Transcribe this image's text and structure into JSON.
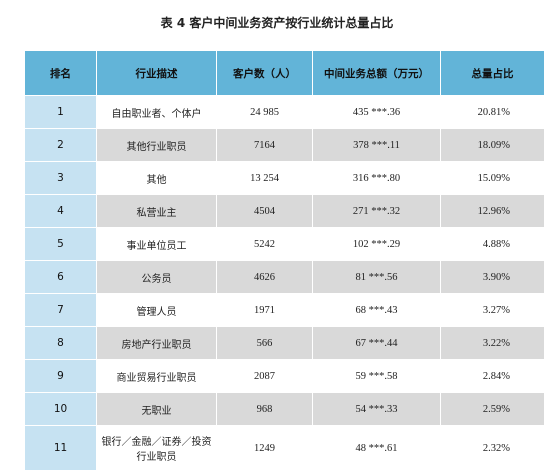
{
  "title": "表 4  客户中间业务资产按行业统计总量占比",
  "columns": [
    "排名",
    "行业描述",
    "客户数（人）",
    "中间业务总额（万元）",
    "总量占比"
  ],
  "rows": [
    {
      "rank": "1",
      "industry": "自由职业者、个体户",
      "customers": "24 985",
      "amount": "435 ***.36",
      "share": "20.81%"
    },
    {
      "rank": "2",
      "industry": "其他行业职员",
      "customers": "7164",
      "amount": "378 ***.11",
      "share": "18.09%"
    },
    {
      "rank": "3",
      "industry": "其他",
      "customers": "13 254",
      "amount": "316 ***.80",
      "share": "15.09%"
    },
    {
      "rank": "4",
      "industry": "私营业主",
      "customers": "4504",
      "amount": "271 ***.32",
      "share": "12.96%"
    },
    {
      "rank": "5",
      "industry": "事业单位员工",
      "customers": "5242",
      "amount": "102 ***.29",
      "share": "4.88%"
    },
    {
      "rank": "6",
      "industry": "公务员",
      "customers": "4626",
      "amount": "81 ***.56",
      "share": "3.90%"
    },
    {
      "rank": "7",
      "industry": "管理人员",
      "customers": "1971",
      "amount": "68 ***.43",
      "share": "3.27%"
    },
    {
      "rank": "8",
      "industry": "房地产行业职员",
      "customers": "566",
      "amount": "67 ***.44",
      "share": "3.22%"
    },
    {
      "rank": "9",
      "industry": "商业贸易行业职员",
      "customers": "2087",
      "amount": "59 ***.58",
      "share": "2.84%"
    },
    {
      "rank": "10",
      "industry": "无职业",
      "customers": "968",
      "amount": "54 ***.33",
      "share": "2.59%"
    },
    {
      "rank": "11",
      "industry": "银行／金融／证券／投资行业职员",
      "customers": "1249",
      "amount": "48 ***.61",
      "share": "2.32%"
    }
  ],
  "colors": {
    "header": "#62b4d8",
    "rank_cell": "#c6e2f2",
    "stripe": "#d9d9d9"
  }
}
